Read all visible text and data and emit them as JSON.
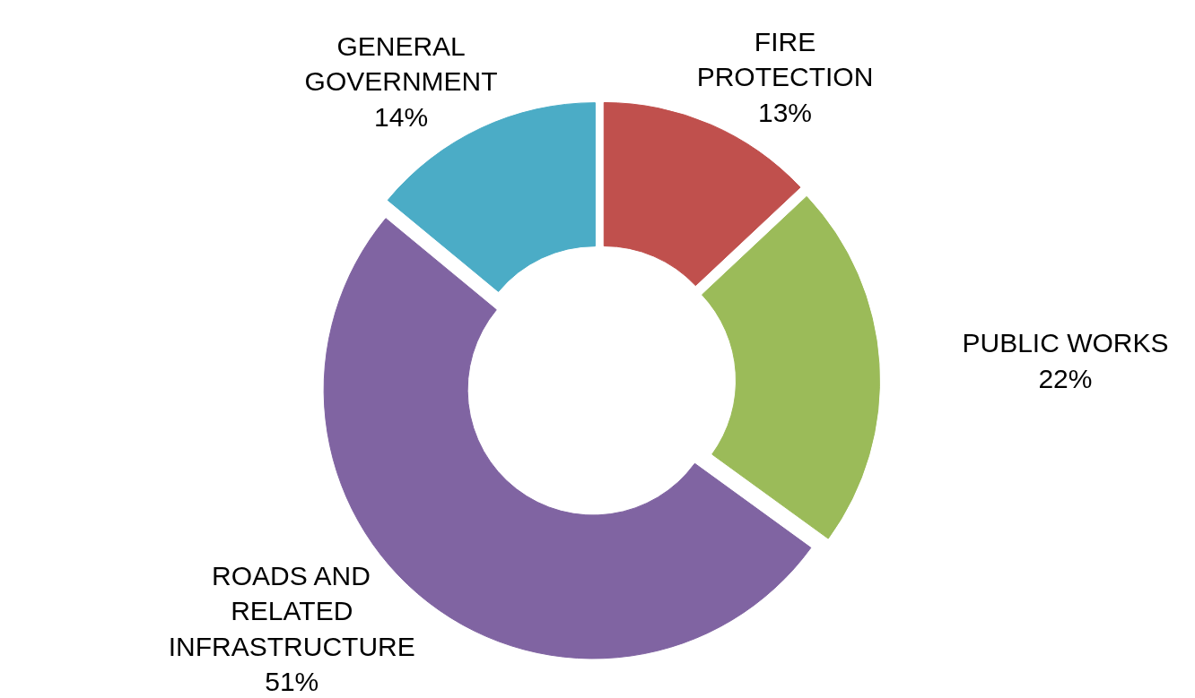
{
  "chart_data": {
    "type": "donut",
    "categories": [
      "FIRE PROTECTION",
      "PUBLIC WORKS",
      "ROADS AND RELATED INFRASTRUCTURE",
      "GENERAL GOVERNMENT"
    ],
    "values": [
      13,
      22,
      51,
      14
    ],
    "value_labels": [
      "13%",
      "22%",
      "51%",
      "14%"
    ],
    "colors": [
      "#c0504d",
      "#9bbb59",
      "#8064a2",
      "#4bacc6"
    ],
    "legend": false
  }
}
